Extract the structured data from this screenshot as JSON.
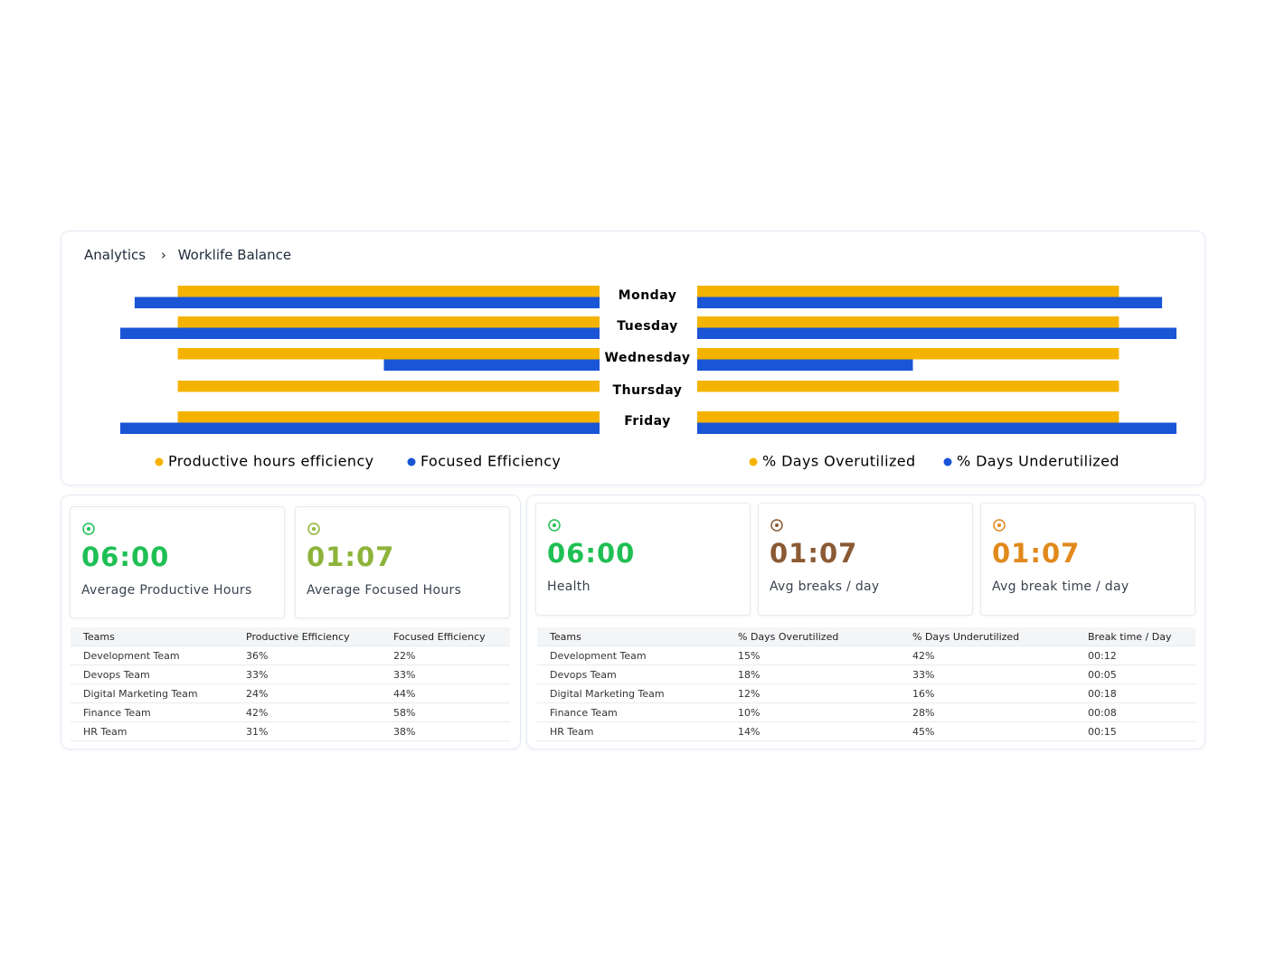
{
  "breadcrumb": {
    "root": "Analytics",
    "current": "Worklife Balance"
  },
  "chart_data": [
    {
      "type": "bar",
      "orientation": "horizontal",
      "direction": "left",
      "categories": [
        "Monday",
        "Tuesday",
        "Wednesday",
        "Thursday",
        "Friday"
      ],
      "series": [
        {
          "name": "Productive hours efficiency",
          "color": "#f5b301",
          "values": [
            88,
            88,
            88,
            88,
            88
          ]
        },
        {
          "name": "Focused Efficiency",
          "color": "#1a55d6",
          "values": [
            97,
            100,
            45,
            0,
            100
          ]
        }
      ],
      "xlim": [
        0,
        100
      ],
      "legend": "bottom"
    },
    {
      "type": "bar",
      "orientation": "horizontal",
      "direction": "right",
      "series": [
        {
          "name": "% Days Overutilized",
          "color": "#f5b301",
          "values": [
            88,
            88,
            88,
            88,
            88
          ]
        },
        {
          "name": "% Days Underutilized",
          "color": "#1a55d6",
          "values": [
            97,
            100,
            45,
            0,
            100
          ]
        }
      ],
      "xlim": [
        0,
        100
      ],
      "legend": "bottom"
    }
  ],
  "left_cards": [
    {
      "value": "06:00",
      "label": "Average Productive Hours",
      "color": "#1fbf54"
    },
    {
      "value": "01:07",
      "label": "Average Focused Hours",
      "color": "#8db33a"
    }
  ],
  "right_cards": [
    {
      "value": "06:00",
      "label": "Health",
      "color": "#1fbf54"
    },
    {
      "value": "01:07",
      "label": "Avg breaks / day",
      "color": "#8a5a34"
    },
    {
      "value": "01:07",
      "label": "Avg break time / day",
      "color": "#e0891c"
    }
  ],
  "left_table": {
    "header": [
      "Teams",
      "Productive Efficiency",
      "Focused Efficiency"
    ],
    "rows": [
      [
        "Development Team",
        "36%",
        "22%"
      ],
      [
        "Devops Team",
        "33%",
        "33%"
      ],
      [
        "Digital Marketing Team",
        "24%",
        "44%"
      ],
      [
        "Finance Team",
        "42%",
        "58%"
      ],
      [
        "HR Team",
        "31%",
        "38%"
      ]
    ]
  },
  "right_table": {
    "header": [
      "Teams",
      "% Days Overutilized",
      "% Days Underutilized",
      "Break time / Day"
    ],
    "rows": [
      [
        "Development Team",
        "15%",
        "42%",
        "00:12"
      ],
      [
        "Devops Team",
        "18%",
        "33%",
        "00:05"
      ],
      [
        "Digital Marketing Team",
        "12%",
        "16%",
        "00:18"
      ],
      [
        "Finance Team",
        "10%",
        "28%",
        "00:08"
      ],
      [
        "HR Team",
        "14%",
        "45%",
        "00:15"
      ]
    ]
  }
}
